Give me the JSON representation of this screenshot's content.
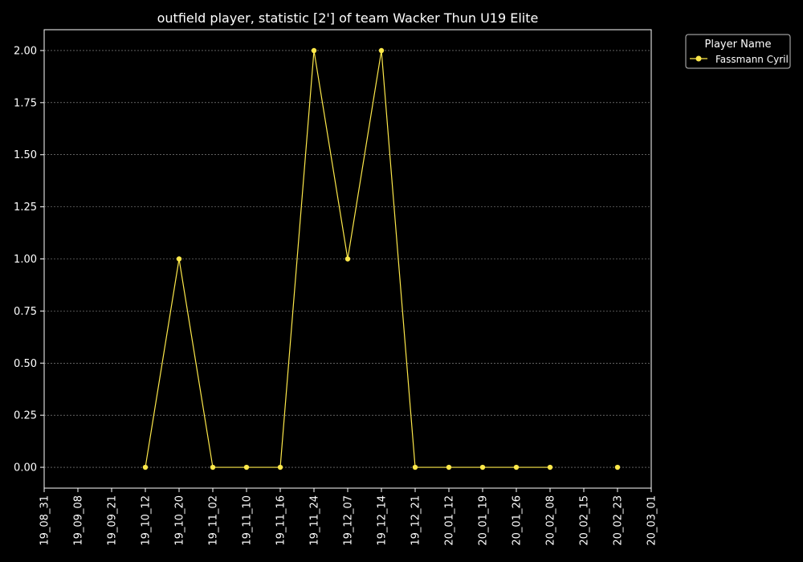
{
  "chart_data": {
    "type": "line",
    "title": "outfield player, statistic [2'] of team Wacker Thun U19 Elite",
    "xlabel": "",
    "ylabel": "",
    "x_ticks": [
      "19_08_31",
      "19_09_08",
      "19_09_21",
      "19_10_12",
      "19_10_20",
      "19_11_02",
      "19_11_10",
      "19_11_16",
      "19_11_24",
      "19_12_07",
      "19_12_14",
      "19_12_21",
      "20_01_12",
      "20_01_19",
      "20_01_26",
      "20_02_08",
      "20_02_15",
      "20_02_23",
      "20_03_01"
    ],
    "y_ticks": [
      "0.00",
      "0.25",
      "0.50",
      "0.75",
      "1.00",
      "1.25",
      "1.50",
      "1.75",
      "2.00"
    ],
    "ylim": [
      -0.1,
      2.1
    ],
    "grid": true,
    "legend": {
      "title": "Player Name",
      "placement": "top-right outside plot"
    },
    "series": [
      {
        "name": "Fassmann Cyril",
        "color": "#fde84a",
        "x": [
          "19_10_12",
          "19_10_20",
          "19_11_02",
          "19_11_10",
          "19_11_16",
          "19_11_24",
          "19_12_07",
          "19_12_14",
          "19_12_21",
          "20_01_12",
          "20_01_19",
          "20_01_26",
          "20_02_08",
          "20_02_23"
        ],
        "values": [
          0,
          1,
          0,
          0,
          0,
          2,
          1,
          2,
          0,
          0,
          0,
          0,
          0,
          0
        ],
        "connected_through": "20_02_08"
      }
    ]
  }
}
